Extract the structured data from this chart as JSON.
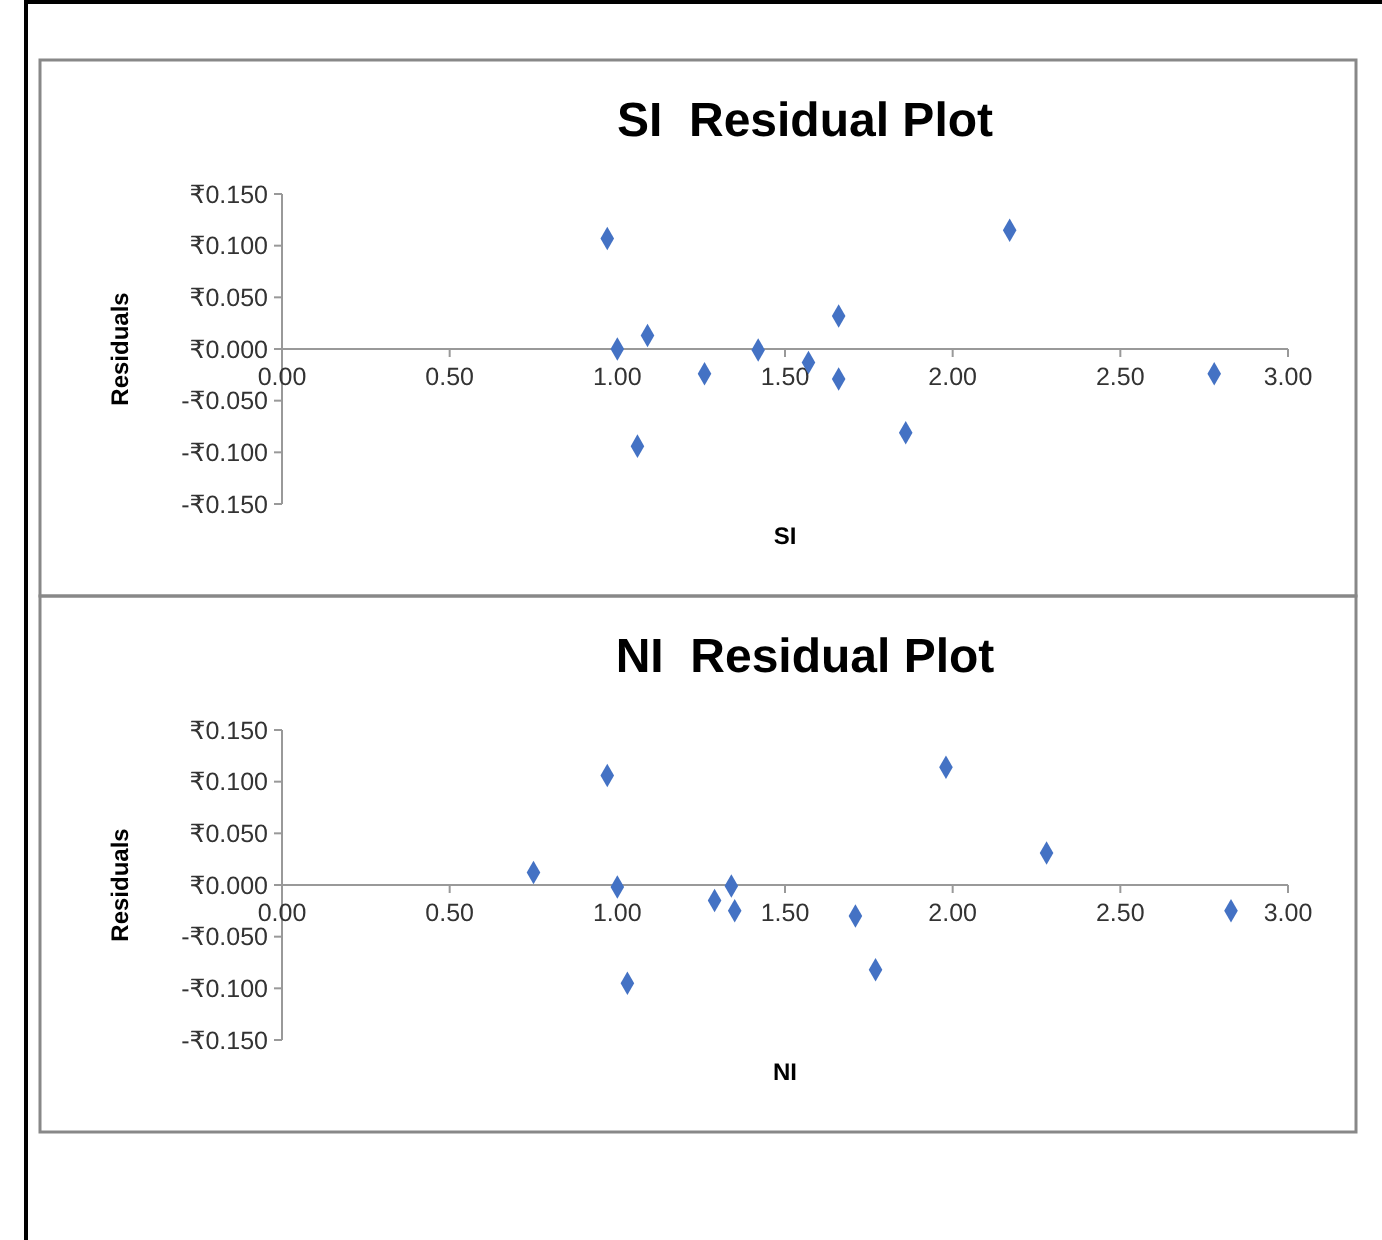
{
  "chart_data": [
    {
      "type": "scatter",
      "title": "SI  Residual Plot",
      "xlabel": "SI",
      "ylabel": "Residuals",
      "marker": "diamond",
      "xlim": [
        0,
        3
      ],
      "xticks": [
        {
          "value": 0,
          "label": "0.00"
        },
        {
          "value": 0.5,
          "label": "0.50"
        },
        {
          "value": 1,
          "label": "1.00"
        },
        {
          "value": 1.5,
          "label": "1.50"
        },
        {
          "value": 2,
          "label": "2.00"
        },
        {
          "value": 2.5,
          "label": "2.50"
        },
        {
          "value": 3,
          "label": "3.00"
        }
      ],
      "ylim": [
        -0.15,
        0.15
      ],
      "yticks": [
        {
          "value": -0.15,
          "label": "-₹0.150"
        },
        {
          "value": -0.1,
          "label": "-₹0.100"
        },
        {
          "value": -0.05,
          "label": "-₹0.050"
        },
        {
          "value": 0,
          "label": "₹0.000"
        },
        {
          "value": 0.05,
          "label": "₹0.050"
        },
        {
          "value": 0.1,
          "label": "₹0.100"
        },
        {
          "value": 0.15,
          "label": "₹0.150"
        }
      ],
      "series": [
        {
          "color": "#4472c4",
          "x": [
            0.97,
            1.0,
            1.09,
            1.06,
            1.26,
            1.42,
            1.57,
            1.66,
            1.66,
            1.86,
            2.17,
            2.78
          ],
          "values": [
            0.107,
            0.0,
            0.013,
            -0.094,
            -0.024,
            -0.001,
            -0.013,
            0.032,
            -0.029,
            -0.081,
            0.115,
            -0.024
          ]
        }
      ]
    },
    {
      "type": "scatter",
      "title": "NI  Residual Plot",
      "xlabel": "NI",
      "ylabel": "Residuals",
      "marker": "diamond",
      "xlim": [
        0,
        3
      ],
      "xticks": [
        {
          "value": 0,
          "label": "0.00"
        },
        {
          "value": 0.5,
          "label": "0.50"
        },
        {
          "value": 1,
          "label": "1.00"
        },
        {
          "value": 1.5,
          "label": "1.50"
        },
        {
          "value": 2,
          "label": "2.00"
        },
        {
          "value": 2.5,
          "label": "2.50"
        },
        {
          "value": 3,
          "label": "3.00"
        }
      ],
      "ylim": [
        -0.15,
        0.15
      ],
      "yticks": [
        {
          "value": -0.15,
          "label": "-₹0.150"
        },
        {
          "value": -0.1,
          "label": "-₹0.100"
        },
        {
          "value": -0.05,
          "label": "-₹0.050"
        },
        {
          "value": 0,
          "label": "₹0.000"
        },
        {
          "value": 0.05,
          "label": "₹0.050"
        },
        {
          "value": 0.1,
          "label": "₹0.100"
        },
        {
          "value": 0.15,
          "label": "₹0.150"
        }
      ],
      "series": [
        {
          "color": "#4472c4",
          "x": [
            0.75,
            0.97,
            1.0,
            1.03,
            1.29,
            1.34,
            1.35,
            1.71,
            1.77,
            1.98,
            2.28,
            2.83
          ],
          "values": [
            0.012,
            0.106,
            -0.002,
            -0.095,
            -0.015,
            -0.001,
            -0.025,
            -0.03,
            -0.082,
            0.114,
            0.031,
            -0.025
          ]
        }
      ]
    }
  ]
}
